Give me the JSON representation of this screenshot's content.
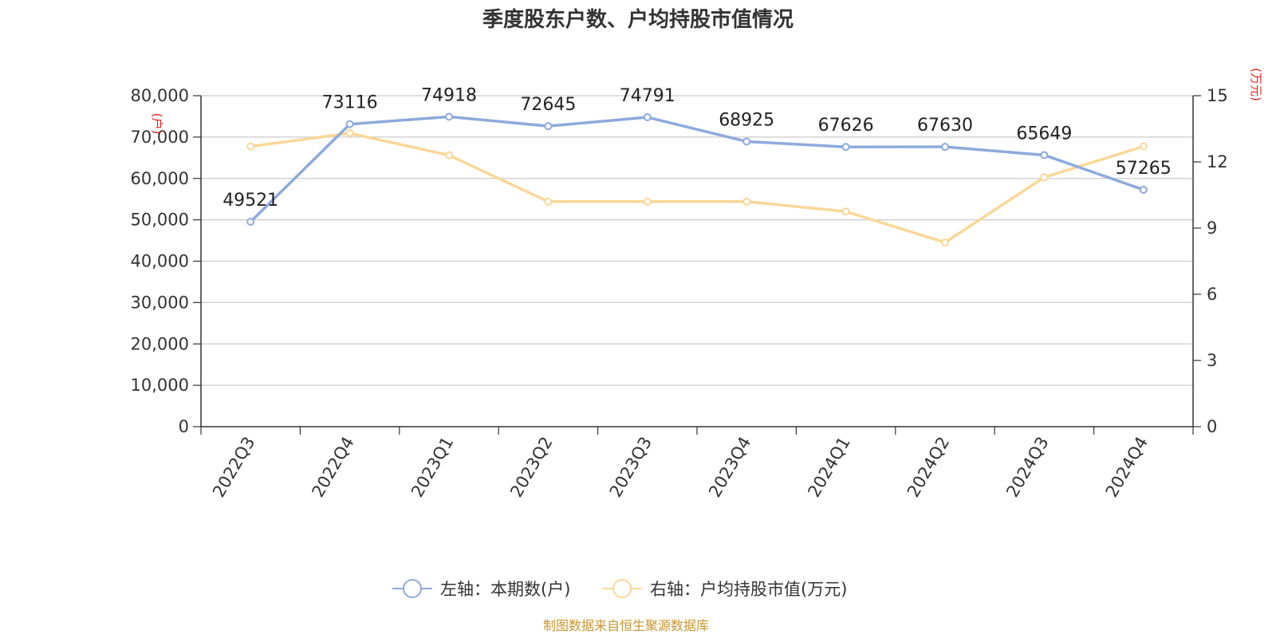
{
  "title": "季度股东户数、户均持股市值情况",
  "source": "制图数据来自恒生聚源数据库",
  "chart_data": {
    "type": "line",
    "categories": [
      "2022Q3",
      "2022Q4",
      "2023Q1",
      "2023Q2",
      "2023Q3",
      "2023Q4",
      "2024Q1",
      "2024Q2",
      "2024Q3",
      "2024Q4"
    ],
    "series": [
      {
        "name": "左轴：本期数(户)",
        "axis": "left",
        "color": "#8eaadb",
        "values": [
          49521,
          73116,
          74918,
          72645,
          74791,
          68925,
          67626,
          67630,
          65649,
          57265
        ],
        "data_labels": [
          "49521",
          "73116",
          "74918",
          "72645",
          "74791",
          "68925",
          "67626",
          "67630",
          "65649",
          "57265"
        ]
      },
      {
        "name": "右轴：户均持股市值(万元)",
        "axis": "right",
        "color": "#fad797",
        "values": [
          12.7,
          13.3,
          12.3,
          10.2,
          10.2,
          10.2,
          9.75,
          8.35,
          11.3,
          12.7
        ]
      }
    ],
    "left_axis": {
      "unit": "(户)",
      "ylim": [
        0,
        80000
      ],
      "ticks": [
        "0",
        "10,000",
        "20,000",
        "30,000",
        "40,000",
        "50,000",
        "60,000",
        "70,000",
        "80,000"
      ]
    },
    "right_axis": {
      "unit": "(万元)",
      "ylim": [
        0,
        15
      ],
      "ticks": [
        "0",
        "3",
        "6",
        "9",
        "12",
        "15"
      ]
    },
    "grid": true,
    "legend_position": "bottom-center"
  }
}
